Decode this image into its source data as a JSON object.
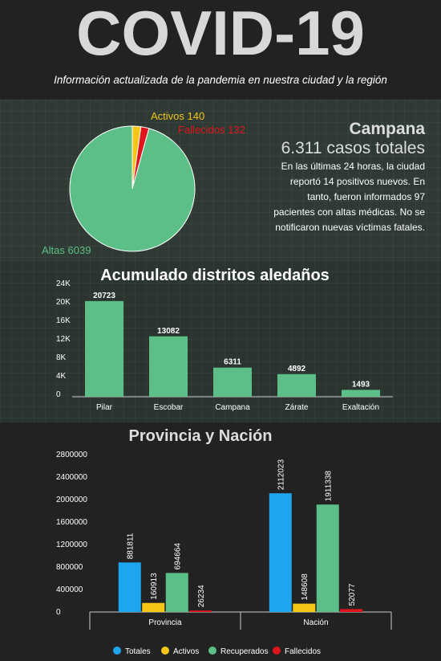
{
  "header": {
    "title": "COVID-19",
    "subtitle": "Información actualizada de la pandemia en nuestra ciudad y la región"
  },
  "summary": {
    "title": "Campana",
    "total": "6.311 casos totales",
    "text": "En las últimas 24 horas, la ciudad reportó 14 positivos nuevos. En tanto, fueron informados 97 pacientes con altas médicas. No se notificaron nuevas víctimas fatales."
  },
  "chart_data": [
    {
      "type": "pie",
      "categories": [
        "Activos",
        "Fallecidos",
        "Altas"
      ],
      "values": [
        140,
        132,
        6039
      ],
      "colors": [
        "#f5c518",
        "#e0141c",
        "#5cbf88"
      ]
    },
    {
      "type": "bar",
      "title": "Acumulado distritos aledaños",
      "categories": [
        "Pilar",
        "Escobar",
        "Campana",
        "Zárate",
        "Exaltación"
      ],
      "values": [
        20723,
        13082,
        6311,
        4892,
        1493
      ],
      "color": "#5cbf88",
      "ylim": [
        0,
        24000
      ],
      "yticks": [
        0,
        {
          "value": 4000,
          "label": "4K"
        },
        {
          "value": 8000,
          "label": "8K"
        },
        {
          "value": 12000,
          "label": "12K"
        },
        {
          "value": 16000,
          "label": "16K"
        },
        {
          "value": 20000,
          "label": "20K"
        },
        {
          "value": 24000,
          "label": "24K"
        }
      ]
    },
    {
      "type": "grouped_bar",
      "title": "Provincia y Nación",
      "categories": [
        "Provincia",
        "Nación"
      ],
      "series": [
        {
          "name": "Totales",
          "color": "#1ea5f0",
          "values": [
            881811,
            2112023
          ]
        },
        {
          "name": "Activos",
          "color": "#f5c518",
          "values": [
            160913,
            148608
          ]
        },
        {
          "name": "Recuperados",
          "color": "#5cbf88",
          "values": [
            694664,
            1911338
          ]
        },
        {
          "name": "Fallecidos",
          "color": "#e0141c",
          "values": [
            26234,
            52077
          ]
        }
      ],
      "ylim": [
        0,
        2800000
      ],
      "yticks": [
        0,
        400000,
        800000,
        1200000,
        1600000,
        2000000,
        2400000,
        2800000
      ],
      "legend": "bottom"
    }
  ]
}
